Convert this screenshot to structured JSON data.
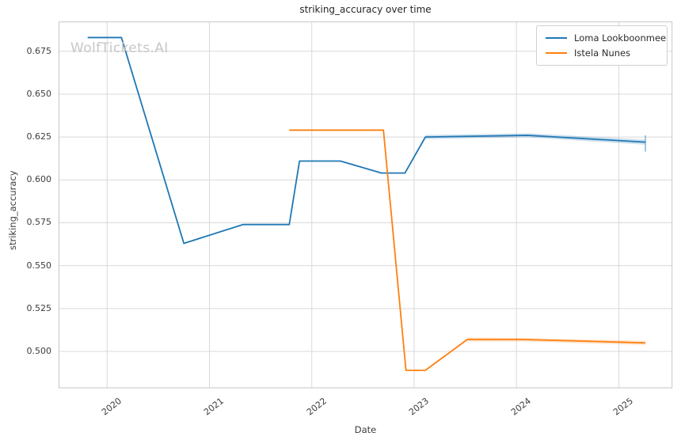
{
  "chart_data": {
    "type": "line",
    "title": "striking_accuracy over time",
    "xlabel": "Date",
    "ylabel": "striking_accuracy",
    "watermark": "WolfTickets.AI",
    "grid": true,
    "legend_position": "upper right",
    "xlim": [
      2019.53,
      2025.52
    ],
    "ylim": [
      0.4788,
      0.6921
    ],
    "xticks": [
      2020,
      2021,
      2022,
      2023,
      2024,
      2025
    ],
    "yticks": [
      0.5,
      0.525,
      0.55,
      0.575,
      0.6,
      0.625,
      0.65,
      0.675
    ],
    "colors": {
      "grid": "#d9d9d9",
      "border": "#c6c6c6",
      "title_text": "#262626",
      "tick_text": "#3d3d3d",
      "watermark_text": "#c7c7c7"
    },
    "series": [
      {
        "name": "Loma Lookboonmee",
        "color": "#1f77b4",
        "x": [
          2019.81,
          2020.14,
          2020.75,
          2021.33,
          2021.78,
          2021.88,
          2022.28,
          2022.68,
          2022.91,
          2023.11,
          2024.11,
          2025.26
        ],
        "y": [
          0.683,
          0.683,
          0.563,
          0.574,
          0.574,
          0.611,
          0.611,
          0.604,
          0.604,
          0.625,
          0.626,
          0.622
        ],
        "band": {
          "x": [
            2023.11,
            2024.11,
            2025.26
          ],
          "upper": [
            0.6262,
            0.6272,
            0.6235
          ],
          "lower": [
            0.6238,
            0.6248,
            0.6205
          ]
        }
      },
      {
        "name": "Istela Nunes",
        "color": "#ff7f0e",
        "x": [
          2021.78,
          2022.7,
          2022.92,
          2023.11,
          2023.52,
          2024.05,
          2025.26
        ],
        "y": [
          0.629,
          0.629,
          0.489,
          0.489,
          0.507,
          0.507,
          0.505
        ],
        "band": {
          "x": [
            2023.52,
            2024.05,
            2025.26
          ],
          "upper": [
            0.5082,
            0.5078,
            0.5062
          ],
          "lower": [
            0.5058,
            0.5058,
            0.5038
          ]
        }
      }
    ],
    "errorbar": {
      "x": 2025.26,
      "low": 0.6165,
      "high": 0.626,
      "color": "#1f77b4"
    }
  }
}
